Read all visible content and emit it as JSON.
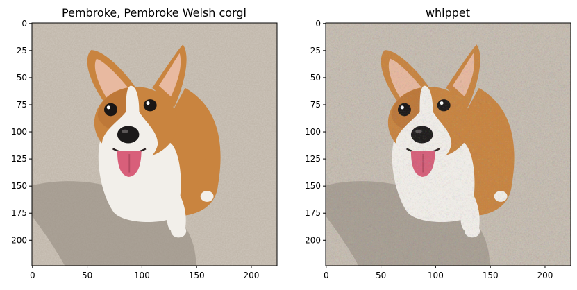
{
  "figure": {
    "background": "#ffffff",
    "axis_color": "#000000"
  },
  "panels": [
    {
      "title": "Pembroke, Pembroke Welsh corgi",
      "image_kind": "original",
      "x_ticks": [
        "0",
        "50",
        "100",
        "150",
        "200"
      ],
      "y_ticks": [
        "0",
        "25",
        "50",
        "75",
        "100",
        "125",
        "150",
        "175",
        "200"
      ],
      "image_extent": [
        0,
        224
      ]
    },
    {
      "title": "whippet",
      "image_kind": "adversarial-noise",
      "x_ticks": [
        "0",
        "50",
        "100",
        "150",
        "200"
      ],
      "y_ticks": [
        "0",
        "25",
        "50",
        "75",
        "100",
        "125",
        "150",
        "175",
        "200"
      ],
      "image_extent": [
        0,
        224
      ]
    }
  ],
  "image_content": {
    "subject": "corgi-dog",
    "colors": {
      "carpet": "#bdb3a6",
      "carpet_shadow": "#8f877c",
      "fur_tan": "#c9843f",
      "fur_dark": "#a8622a",
      "fur_white": "#f2efea",
      "ear_inner": "#e8b9a0",
      "tongue": "#d85f7a",
      "nose": "#1c1a1a",
      "eye": "#1a1615"
    }
  }
}
